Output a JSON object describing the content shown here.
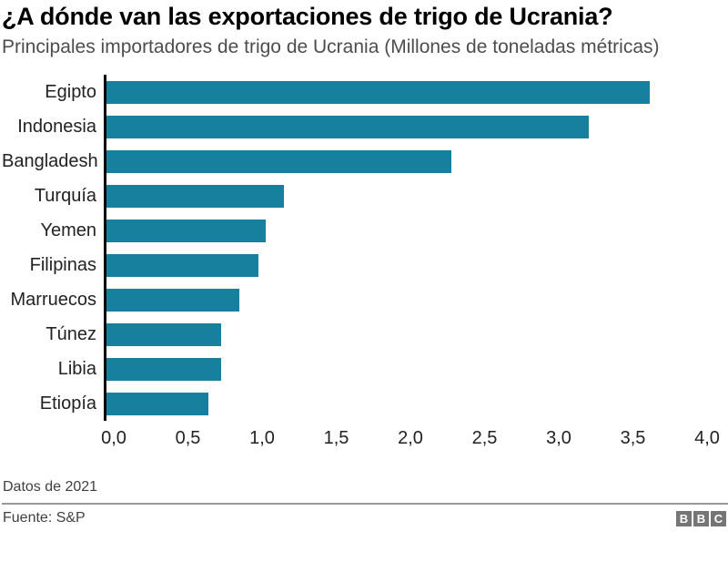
{
  "header": {
    "title": "¿A dónde van las exportaciones de trigo de Ucrania?",
    "subtitle": "Principales importadores de trigo de Ucrania (Millones de toneladas métricas)"
  },
  "chart_data": {
    "type": "bar",
    "orientation": "horizontal",
    "title": "¿A dónde van las exportaciones de trigo de Ucrania?",
    "subtitle": "Principales importadores de trigo de Ucrania (Millones de toneladas métricas)",
    "categories": [
      "Egipto",
      "Indonesia",
      "Bangladesh",
      "Turquía",
      "Yemen",
      "Filipinas",
      "Marruecos",
      "Túnez",
      "Libia",
      "Etiopía"
    ],
    "values": [
      3.64,
      3.23,
      2.31,
      1.19,
      1.07,
      1.02,
      0.89,
      0.77,
      0.77,
      0.68
    ],
    "xlabel": "",
    "ylabel": "",
    "xlim": [
      0,
      4
    ],
    "x_ticks": [
      0,
      0.5,
      1,
      1.5,
      2,
      2.5,
      3,
      3.5,
      4
    ],
    "x_tick_labels": [
      "0,0",
      "0,5",
      "1,0",
      "1,5",
      "2,0",
      "2,5",
      "3,0",
      "3,5",
      "4,0"
    ],
    "grid": false,
    "legend": false,
    "bar_color": "#17809e",
    "axis_line_color": "#000000"
  },
  "footer": {
    "note": "Datos de 2021",
    "source": "Fuente: S&P",
    "logo_blocks": [
      "B",
      "B",
      "C"
    ]
  },
  "colors": {
    "bar": "#17809e",
    "title_text": "#000000",
    "subtitle_text": "#4d4d4d",
    "label_text": "#222222",
    "footer_text": "#404040",
    "divider": "#999999",
    "logo_background": "#757575"
  }
}
